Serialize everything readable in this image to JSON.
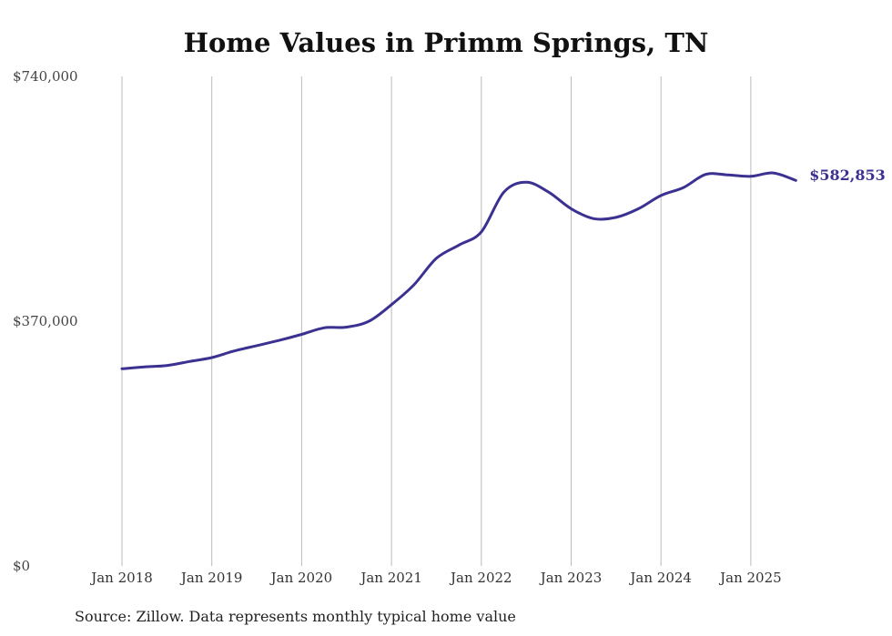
{
  "chart_data": {
    "type": "line",
    "title": "Home Values in Primm Springs, TN",
    "source": "Source: Zillow. Data represents monthly typical home value",
    "xlabel": "",
    "ylabel": "",
    "ylim": [
      0,
      740000
    ],
    "y_ticks": [
      {
        "value": 0,
        "label": "$0"
      },
      {
        "value": 370000,
        "label": "$370,000"
      },
      {
        "value": 740000,
        "label": "$740,000"
      }
    ],
    "x_ticks": [
      "Jan 2018",
      "Jan 2019",
      "Jan 2020",
      "Jan 2021",
      "Jan 2022",
      "Jan 2023",
      "Jan 2024",
      "Jan 2025"
    ],
    "grid": "vertical",
    "end_label": "$582,853",
    "colors": {
      "line": "#3b3191",
      "grid": "#bbbbbb"
    },
    "series": [
      {
        "x": [
          "2018-01",
          "2018-04",
          "2018-07",
          "2018-10",
          "2019-01",
          "2019-04",
          "2019-07",
          "2019-10",
          "2020-01",
          "2020-04",
          "2020-07",
          "2020-10",
          "2021-01",
          "2021-04",
          "2021-07",
          "2021-10",
          "2022-01",
          "2022-04",
          "2022-07",
          "2022-10",
          "2023-01",
          "2023-04",
          "2023-07",
          "2023-10",
          "2024-01",
          "2024-04",
          "2024-07",
          "2024-10",
          "2025-01",
          "2025-04",
          "2025-07"
        ],
        "values": [
          298000,
          301000,
          303000,
          309000,
          315000,
          325000,
          333000,
          341000,
          350000,
          360000,
          361000,
          370000,
          395000,
          425000,
          465000,
          485000,
          505000,
          565000,
          580000,
          565000,
          540000,
          525000,
          527000,
          540000,
          560000,
          572000,
          592000,
          591000,
          589000,
          594000,
          582853
        ]
      }
    ]
  }
}
